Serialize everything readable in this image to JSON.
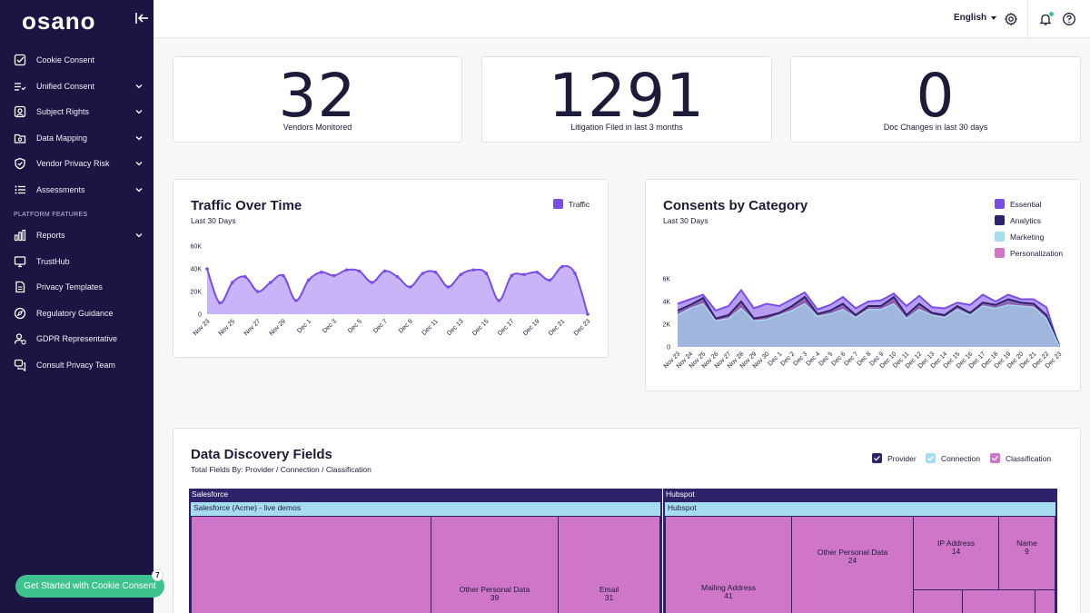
{
  "brand": {
    "logo": "osano"
  },
  "sidebar": {
    "items": [
      {
        "label": "Cookie Consent",
        "icon": "check-square-icon",
        "expandable": false
      },
      {
        "label": "Unified Consent",
        "icon": "list-check-icon",
        "expandable": true
      },
      {
        "label": "Subject Rights",
        "icon": "user-card-icon",
        "expandable": true
      },
      {
        "label": "Data Mapping",
        "icon": "folder-map-icon",
        "expandable": true
      },
      {
        "label": "Vendor Privacy Risk",
        "icon": "shield-icon",
        "expandable": true
      },
      {
        "label": "Assessments",
        "icon": "list-icon",
        "expandable": true
      }
    ],
    "section_title": "PLATFORM FEATURES",
    "features": [
      {
        "label": "Reports",
        "icon": "bar-chart-icon",
        "expandable": true
      },
      {
        "label": "TrustHub",
        "icon": "monitor-icon",
        "expandable": false
      },
      {
        "label": "Privacy Templates",
        "icon": "document-icon",
        "expandable": false
      },
      {
        "label": "Regulatory Guidance",
        "icon": "compass-icon",
        "expandable": false
      },
      {
        "label": "GDPR Representative",
        "icon": "user-shield-icon",
        "expandable": false
      },
      {
        "label": "Consult Privacy Team",
        "icon": "chat-icon",
        "expandable": false
      }
    ],
    "cta_label": "Get Started with Cookie Consent",
    "cta_badge": "7"
  },
  "topbar": {
    "language": "English"
  },
  "stats": [
    {
      "value": "32",
      "label": "Vendors Monitored"
    },
    {
      "value": "1291",
      "label": "Litigation Filed in last 3 months"
    },
    {
      "value": "0",
      "label": "Doc Changes in last 30 days"
    }
  ],
  "traffic": {
    "title": "Traffic Over Time",
    "subtitle": "Last 30 Days",
    "legend": "Traffic"
  },
  "consents": {
    "title": "Consents by Category",
    "subtitle": "Last 30 Days",
    "legend": [
      "Essential",
      "Analytics",
      "Marketing",
      "Personalization"
    ]
  },
  "discovery": {
    "title": "Data Discovery Fields",
    "subtitle": "Total Fields By: Provider / Connection / Classification",
    "legend": [
      "Provider",
      "Connection",
      "Classification"
    ],
    "providers": [
      {
        "name": "Salesforce",
        "connection": "Salesforce (Acme) - live demos",
        "cells": [
          {
            "label": "",
            "value": ""
          },
          {
            "label": "Other Personal Data",
            "value": "39"
          },
          {
            "label": "Email",
            "value": "31"
          }
        ]
      },
      {
        "name": "Hubspot",
        "connection": "Hubspot",
        "cells": [
          {
            "label": "Mailing Address",
            "value": "41"
          },
          {
            "label": "Other Personal Data",
            "value": "24"
          },
          {
            "label": "IP Address",
            "value": "14"
          },
          {
            "label": "Name",
            "value": "9"
          }
        ]
      }
    ]
  },
  "colors": {
    "sidebar": "#1c1543",
    "accent_green": "#3ec38e",
    "essential": "#7b4de8",
    "analytics": "#2f226b",
    "marketing": "#a6dcf0",
    "personalization": "#cf76c8",
    "traffic_fill": "#c9b4f7",
    "traffic_line": "#7b4de8"
  },
  "chart_data": [
    {
      "type": "area",
      "title": "Traffic Over Time",
      "subtitle": "Last 30 Days",
      "x": [
        "Nov 23",
        "Nov 24",
        "Nov 25",
        "Nov 26",
        "Nov 27",
        "Nov 28",
        "Nov 29",
        "Nov 30",
        "Dec 1",
        "Dec 2",
        "Dec 3",
        "Dec 4",
        "Dec 5",
        "Dec 6",
        "Dec 7",
        "Dec 8",
        "Dec 9",
        "Dec 10",
        "Dec 11",
        "Dec 12",
        "Dec 13",
        "Dec 14",
        "Dec 15",
        "Dec 16",
        "Dec 17",
        "Dec 18",
        "Dec 19",
        "Dec 20",
        "Dec 21",
        "Dec 22",
        "Dec 23"
      ],
      "tick_labels": [
        "Nov 23",
        "Nov 25",
        "Nov 27",
        "Nov 29",
        "Dec 1",
        "Dec 3",
        "Dec 5",
        "Dec 7",
        "Dec 9",
        "Dec 11",
        "Dec 13",
        "Dec 15",
        "Dec 17",
        "Dec 19",
        "Dec 21",
        "Dec 23"
      ],
      "series": [
        {
          "name": "Traffic",
          "values": [
            40000,
            10000,
            28000,
            33000,
            20000,
            28000,
            34000,
            12000,
            30000,
            37000,
            34000,
            39000,
            38000,
            28000,
            38000,
            33000,
            24000,
            36000,
            37000,
            24000,
            35000,
            39000,
            36000,
            12000,
            34000,
            35000,
            37000,
            30000,
            42000,
            36000,
            0
          ]
        }
      ],
      "ylim": [
        0,
        60000
      ],
      "yticks": [
        "0",
        "20K",
        "40K",
        "60K"
      ]
    },
    {
      "type": "area",
      "title": "Consents by Category",
      "subtitle": "Last 30 Days",
      "x": [
        "Nov 23",
        "Nov 24",
        "Nov 25",
        "Nov 26",
        "Nov 27",
        "Nov 28",
        "Nov 29",
        "Nov 30",
        "Dec 1",
        "Dec 2",
        "Dec 3",
        "Dec 4",
        "Dec 5",
        "Dec 6",
        "Dec 7",
        "Dec 8",
        "Dec 9",
        "Dec 10",
        "Dec 11",
        "Dec 12",
        "Dec 13",
        "Dec 14",
        "Dec 15",
        "Dec 16",
        "Dec 17",
        "Dec 18",
        "Dec 19",
        "Dec 20",
        "Dec 21",
        "Dec 22",
        "Dec 23"
      ],
      "series": [
        {
          "name": "Essential",
          "values": [
            3800,
            4200,
            4600,
            3200,
            3600,
            5000,
            3400,
            3800,
            3600,
            4200,
            4800,
            3300,
            3700,
            4400,
            3400,
            4000,
            4100,
            4700,
            3600,
            4500,
            3500,
            3400,
            3900,
            3700,
            4600,
            4000,
            4600,
            4200,
            4200,
            3500,
            0
          ]
        },
        {
          "name": "Analytics",
          "values": [
            3200,
            3700,
            4300,
            2500,
            2800,
            4000,
            2500,
            2700,
            3000,
            3600,
            4400,
            2900,
            3200,
            3800,
            2800,
            3600,
            3600,
            4400,
            2800,
            3800,
            3000,
            2800,
            3600,
            3000,
            3900,
            3700,
            4200,
            3900,
            3800,
            2800,
            200
          ]
        },
        {
          "name": "Marketing",
          "values": [
            2800,
            3400,
            3800,
            2300,
            2500,
            3400,
            2300,
            2400,
            2800,
            3200,
            3800,
            2700,
            2900,
            3300,
            2600,
            3300,
            3300,
            3800,
            2500,
            3300,
            2800,
            2600,
            3300,
            2800,
            3600,
            3400,
            3700,
            3600,
            3500,
            2500,
            100
          ]
        },
        {
          "name": "Personalization",
          "values": [
            3000,
            3500,
            4000,
            2400,
            2700,
            3700,
            2400,
            2600,
            2900,
            3400,
            4100,
            2800,
            3000,
            3500,
            2700,
            3400,
            3400,
            4100,
            2600,
            3500,
            2900,
            2700,
            3400,
            2900,
            3700,
            3500,
            3900,
            3700,
            3600,
            2600,
            150
          ]
        }
      ],
      "ylim": [
        0,
        6000
      ],
      "yticks": [
        "0",
        "2K",
        "4K",
        "6K"
      ]
    }
  ]
}
